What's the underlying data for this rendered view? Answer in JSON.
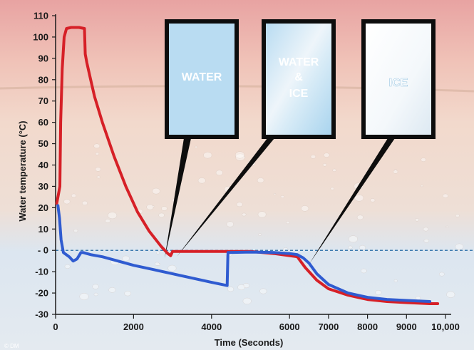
{
  "chart_data": {
    "type": "line",
    "title": "",
    "xlabel": "Time (Seconds)",
    "ylabel": "Water temperature (°C)",
    "xlim": [
      0,
      10000
    ],
    "ylim": [
      -30,
      110
    ],
    "x_ticks": [
      0,
      2000,
      4000,
      6000,
      7000,
      8000,
      9000,
      10000
    ],
    "x_tick_labels": [
      "0",
      "2000",
      "4000",
      "6000",
      "7000",
      "8000",
      "9000",
      "10,000"
    ],
    "y_ticks": [
      110,
      100,
      90,
      80,
      70,
      60,
      50,
      40,
      30,
      20,
      10,
      0,
      -10,
      -20,
      -30
    ],
    "y_tick_labels": [
      "110",
      "100",
      "90",
      "80",
      "70",
      "60",
      "50",
      "40",
      "30",
      "20",
      "10",
      "- 0",
      "-10",
      "-20",
      "-30"
    ],
    "zero_line": "dashed",
    "series": [
      {
        "color": "#d62027",
        "points": [
          [
            30,
            22
          ],
          [
            60,
            25
          ],
          [
            110,
            30
          ],
          [
            130,
            60
          ],
          [
            170,
            85
          ],
          [
            220,
            100
          ],
          [
            280,
            104
          ],
          [
            400,
            104.5
          ],
          [
            600,
            104.5
          ],
          [
            740,
            104
          ],
          [
            760,
            92
          ],
          [
            800,
            88
          ],
          [
            900,
            80
          ],
          [
            1000,
            72
          ],
          [
            1200,
            60
          ],
          [
            1500,
            44
          ],
          [
            1800,
            30
          ],
          [
            2100,
            18
          ],
          [
            2400,
            9
          ],
          [
            2700,
            2
          ],
          [
            2880,
            -1.5
          ],
          [
            2950,
            -2.5
          ],
          [
            3000,
            -0.5
          ],
          [
            3200,
            -0.5
          ],
          [
            4000,
            -0.5
          ],
          [
            5000,
            -0.5
          ],
          [
            5600,
            -1.5
          ],
          [
            6200,
            -3
          ],
          [
            6400,
            -8
          ],
          [
            6700,
            -14
          ],
          [
            7000,
            -18
          ],
          [
            7500,
            -21
          ],
          [
            8000,
            -23
          ],
          [
            8500,
            -24
          ],
          [
            9000,
            -24.5
          ],
          [
            9600,
            -25
          ],
          [
            9800,
            -25
          ]
        ]
      },
      {
        "color": "#2f5bd0",
        "points": [
          [
            60,
            21
          ],
          [
            100,
            15
          ],
          [
            140,
            5
          ],
          [
            200,
            -1
          ],
          [
            350,
            -3
          ],
          [
            450,
            -5
          ],
          [
            550,
            -4
          ],
          [
            650,
            -1
          ],
          [
            700,
            -1
          ],
          [
            900,
            -2
          ],
          [
            1200,
            -3
          ],
          [
            1600,
            -5
          ],
          [
            2000,
            -7
          ],
          [
            2500,
            -9
          ],
          [
            3000,
            -11
          ],
          [
            3500,
            -13
          ],
          [
            4000,
            -15
          ],
          [
            4400,
            -16.5
          ],
          [
            4420,
            -1
          ],
          [
            5000,
            -0.8
          ],
          [
            5600,
            -1
          ],
          [
            6000,
            -1.5
          ],
          [
            6200,
            -2
          ],
          [
            6350,
            -3.5
          ],
          [
            6500,
            -6
          ],
          [
            6700,
            -11
          ],
          [
            7000,
            -16
          ],
          [
            7500,
            -20
          ],
          [
            8000,
            -22
          ],
          [
            8500,
            -23
          ],
          [
            9000,
            -23.5
          ],
          [
            9600,
            -24
          ]
        ]
      }
    ],
    "annotations": [
      {
        "label": "WATER",
        "points_to": [
          2950,
          -1
        ]
      },
      {
        "label_lines": [
          "WATER",
          "&",
          "ICE"
        ],
        "points_to": [
          3300,
          -0.5
        ]
      },
      {
        "label": "ICE",
        "points_to": [
          5900,
          -4
        ]
      }
    ]
  },
  "footer": {
    "credit": "© DM"
  },
  "colors": {
    "background_top": "#e9a9a6",
    "background_middle": "#f0ddd0",
    "background_bottom": "#d9e4f0",
    "water_panel": "#b9dcf2",
    "ice_panel": "#f2f6fa",
    "axis": "#1a1a1a",
    "zero_line": "#3e7bb0"
  }
}
